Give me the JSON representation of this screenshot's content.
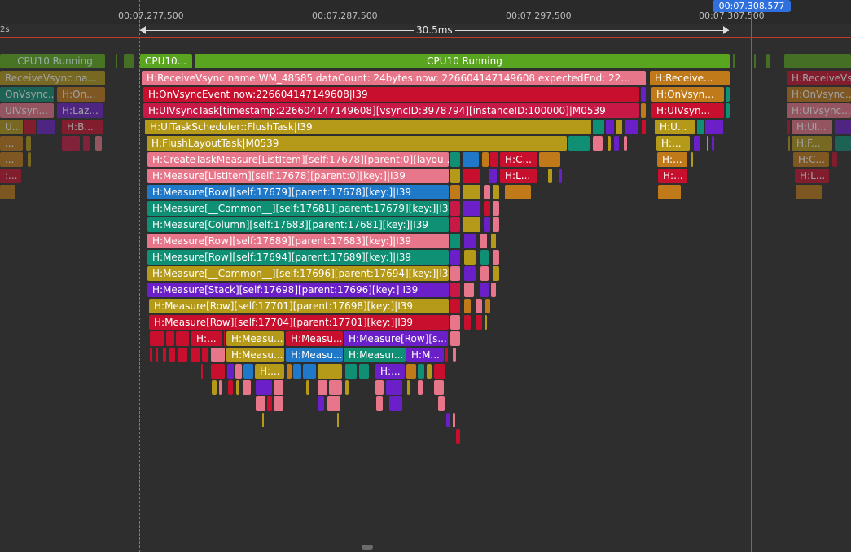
{
  "ruler": {
    "ticks": [
      "00:07.277.500",
      "00:07.287.500",
      "00:07.297.500",
      "00:07.307.500"
    ],
    "left_label": "2s",
    "cursor_time": "00:07.308.577"
  },
  "range": {
    "duration": "30.5ms"
  },
  "cpu": {
    "left": "CPU10 Running",
    "small": "CPU10...",
    "main": "CPU10 Running"
  },
  "slices": {
    "l_r1": "ReceiveVsync na...",
    "l_r2a": "OnVsync...",
    "l_r2b": "H:On...",
    "l_r3a": "UIVsyn...",
    "l_r3b": "H:Laz...",
    "l_r4a": "U...",
    "l_r4b": "H:B...",
    "l_r5": "...",
    "l_r6": "...",
    "l_r7": ":...",
    "m_r1": "H:ReceiveVsync name:WM_48585 dataCount: 24bytes now: 226604147149608 expectedEnd: 22...",
    "m_r2": "H:OnVsyncEvent now:226604147149608|I39",
    "m_r3": "H:UIVsyncTask[timestamp:226604147149608][vsyncID:3978794][instanceID:100000]|M0539",
    "m_r4": "H:UITaskScheduler::FlushTask|I39",
    "m_r5": "H:FlushLayoutTask|M0539",
    "m_r6": "H:CreateTaskMeasure[ListItem][self:17678][parent:0][layou...",
    "m_r6b": "H:C...",
    "m_r7": "H:Measure[ListItem][self:17678][parent:0][key:]|I39",
    "m_r7b": "H:L...",
    "m_r8": "H:Measure[Row][self:17679][parent:17678][key:]|I39",
    "m_r9": "H:Measure[__Common__][self:17681][parent:17679][key:]|I39...",
    "m_r10": "H:Measure[Column][self:17683][parent:17681][key:]|I39",
    "m_r11": "H:Measure[Row][self:17689][parent:17683][key:]|I39",
    "m_r12": "H:Measure[Row][self:17694][parent:17689][key:]|I39",
    "m_r13": "H:Measure[__Common__][self:17696][parent:17694][key:]|I39...",
    "m_r14": "H:Measure[Stack][self:17698][parent:17696][key:]|I39",
    "m_r15": "H:Measure[Row][self:17701][parent:17698][key:]|I39",
    "m_r16": "H:Measure[Row][self:17704][parent:17701][key:]|I39",
    "m_r17a": "H:...",
    "m_r17b": "H:Measu...",
    "m_r17c": "H:Measu...",
    "m_r17d": "H:Measure[Row][s...",
    "m_r18a": "H:Measu...",
    "m_r18b": "H:Measu...",
    "m_r18c": "H:Measur...",
    "m_r18d": "H:M...",
    "m_r19a": "H:...",
    "m_r19b": "H:...",
    "r_r1": "H:Receive...",
    "r_r2": "H:OnVsyn...",
    "r_r3": "H:UIVsyn...",
    "r_r4": "H:U...",
    "r_r5": "H:...",
    "r_r6": "H:...",
    "r_r7": "H:...",
    "f_r1": "H:ReceiveVs...",
    "f_r2": "H:OnVsync...",
    "f_r3": "H:UIVsync...",
    "f_r4": "H:UI...",
    "f_r5": "H:F...",
    "f_r6": "H:C...",
    "f_r7": "H:L..."
  },
  "colors": {
    "cpu_green": "#5aa51f",
    "pink": "#e8768a",
    "red": "#c8102e",
    "crimson": "#c81845",
    "gold": "#b59a1a",
    "blue": "#1f78c8",
    "teal": "#0f9075",
    "purple": "#6a1fc8",
    "orange": "#c07a1a",
    "cursor_blue": "#2f6fde"
  }
}
